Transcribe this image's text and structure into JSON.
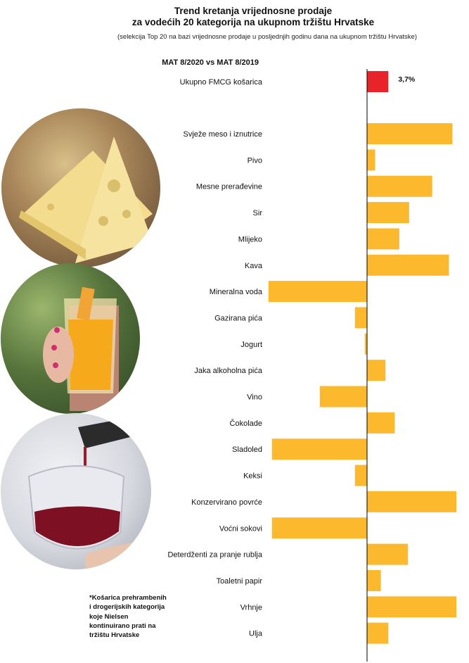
{
  "title_line1": "Trend kretanja vrijednosne prodaje",
  "title_line2": "za vodećih 20 kategorija na ukupnom tržištu Hrvatske",
  "subtitle": "(selekcija Top 20 na bazi vrijednosne prodaje u posljednjih godinu dana na ukupnom tržištu Hrvatske)",
  "period_label": "MAT 8/2020 vs MAT 8/2019",
  "footnote": "*Košarica prehrambenih i drogerijskih kategorija koje Nielsen kontinuirano prati na tržištu Hrvatske",
  "colors": {
    "total": "#e8232a",
    "category": "#fdb92e",
    "axis": "#000000"
  },
  "chart_data": {
    "type": "bar",
    "orientation": "horizontal",
    "total": {
      "label": "Ukupno FMCG košarica",
      "value": 3.7,
      "value_label": "3,7%"
    },
    "categories": [
      "Svježe meso i iznutrice",
      "Pivo",
      "Mesne prerađevine",
      "Sir",
      "Mlijeko",
      "Kava",
      "Mineralna voda",
      "Gazirana pića",
      "Jogurt",
      "Jaka alkoholna pića",
      "Vino",
      "Čokolade",
      "Sladoled",
      "Keksi",
      "Konzervirano povrće",
      "Voćni sokovi",
      "Deterdženti za pranje rublja",
      "Toaletni papir",
      "Vrhnje",
      "Ulja"
    ],
    "values": [
      14.8,
      1.4,
      11.3,
      7.3,
      5.6,
      14.2,
      -17.1,
      -2.1,
      -0.4,
      3.2,
      -8.2,
      4.8,
      -16.5,
      -2.1,
      15.5,
      -16.5,
      7.1,
      2.4,
      15.5,
      3.7
    ],
    "xlim": [
      -17.1,
      15.5
    ],
    "grid": false
  }
}
